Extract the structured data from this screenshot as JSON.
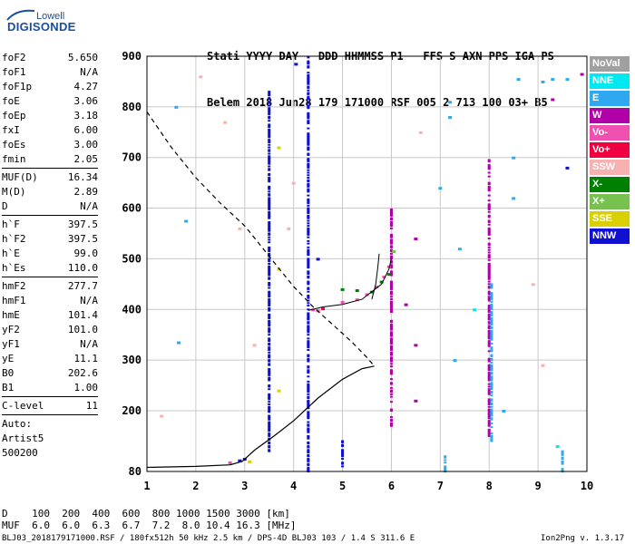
{
  "logo": {
    "top": "Lowell",
    "main": "DIGISONDE"
  },
  "header": {
    "line1": "Stati YYYY DAY   DDD HHMMSS P1   FFS S AXN PPS IGA PS",
    "line2": "Belem 2018 Jun28 179 171000 RSF 005 2 713 100 03+ B5"
  },
  "params": {
    "group1": [
      {
        "k": "foF2",
        "v": "5.650"
      },
      {
        "k": "foF1",
        "v": "N/A"
      },
      {
        "k": "foF1p",
        "v": "4.27"
      },
      {
        "k": "foE",
        "v": "3.06"
      },
      {
        "k": "foEp",
        "v": "3.18"
      },
      {
        "k": "fxI",
        "v": "6.00"
      },
      {
        "k": "foEs",
        "v": "3.00"
      },
      {
        "k": "fmin",
        "v": "2.05"
      }
    ],
    "group2": [
      {
        "k": "MUF(D)",
        "v": "16.34"
      },
      {
        "k": "M(D)",
        "v": "2.89"
      },
      {
        "k": "D",
        "v": "N/A"
      }
    ],
    "group3": [
      {
        "k": "h`F",
        "v": "397.5"
      },
      {
        "k": "h`F2",
        "v": "397.5"
      },
      {
        "k": "h`E",
        "v": "99.0"
      },
      {
        "k": "h`Es",
        "v": "110.0"
      }
    ],
    "group4": [
      {
        "k": "hmF2",
        "v": "277.7"
      },
      {
        "k": "hmF1",
        "v": "N/A"
      },
      {
        "k": "hmE",
        "v": "101.4"
      },
      {
        "k": "yF2",
        "v": "101.0"
      },
      {
        "k": "yF1",
        "v": "N/A"
      },
      {
        "k": "yE",
        "v": "11.1"
      },
      {
        "k": "B0",
        "v": "202.6"
      },
      {
        "k": "B1",
        "v": "1.00"
      }
    ],
    "group5": [
      {
        "k": "C-level",
        "v": "11"
      }
    ],
    "auto_lines": [
      "Auto:",
      "Artist5",
      "500200"
    ]
  },
  "legend": [
    {
      "label": "NoVal",
      "color": "#a0a0a0"
    },
    {
      "label": "NNE",
      "color": "#00e8f0"
    },
    {
      "label": "E",
      "color": "#30a8f0"
    },
    {
      "label": "W",
      "color": "#b000a8"
    },
    {
      "label": "Vo-",
      "color": "#f050b0"
    },
    {
      "label": "Vo+",
      "color": "#f00040"
    },
    {
      "label": "SSW",
      "color": "#f8b0b0"
    },
    {
      "label": "X-",
      "color": "#008000"
    },
    {
      "label": "X+",
      "color": "#78c050"
    },
    {
      "label": "SSE",
      "color": "#d8d000"
    },
    {
      "label": "NNW",
      "color": "#1010d0"
    }
  ],
  "chart_data": {
    "type": "scatter",
    "x_ticks": [
      "1",
      "2",
      "3",
      "4",
      "5",
      "6",
      "7",
      "8",
      "9",
      "10"
    ],
    "y_ticks": [
      "80",
      "200",
      "300",
      "400",
      "500",
      "600",
      "700",
      "800",
      "900"
    ],
    "xlim": [
      1,
      10
    ],
    "ylim": [
      80,
      900
    ],
    "grid": true,
    "trace_solid": [
      [
        1.0,
        88
      ],
      [
        2.0,
        90
      ],
      [
        2.7,
        93
      ],
      [
        2.95,
        100
      ],
      [
        3.2,
        122
      ],
      [
        3.6,
        150
      ],
      [
        4.0,
        180
      ],
      [
        4.5,
        225
      ],
      [
        5.0,
        262
      ],
      [
        5.4,
        283
      ],
      [
        5.65,
        288
      ]
    ],
    "trace_dashed": [
      [
        1.0,
        790
      ],
      [
        1.5,
        720
      ],
      [
        2.0,
        660
      ],
      [
        2.5,
        610
      ],
      [
        3.0,
        565
      ],
      [
        3.5,
        505
      ],
      [
        4.0,
        445
      ],
      [
        4.4,
        405
      ],
      [
        4.8,
        370
      ],
      [
        5.2,
        335
      ],
      [
        5.5,
        305
      ],
      [
        5.65,
        288
      ]
    ],
    "trace_f2": [
      [
        4.3,
        398
      ],
      [
        4.6,
        405
      ],
      [
        5.0,
        410
      ],
      [
        5.4,
        420
      ],
      [
        5.8,
        450
      ],
      [
        5.95,
        480
      ],
      [
        6.0,
        500
      ]
    ],
    "trace_f2_tail": [
      [
        5.6,
        420
      ],
      [
        5.68,
        450
      ],
      [
        5.72,
        482
      ],
      [
        5.75,
        510
      ]
    ],
    "echo_columns": [
      {
        "f": 3.5,
        "h0": 120,
        "h1": 830,
        "color": "#1010d0"
      },
      {
        "f": 4.3,
        "h0": 80,
        "h1": 900,
        "color": "#1010d0"
      },
      {
        "f": 6.0,
        "h0": 170,
        "h1": 600,
        "color": "#b000a8"
      },
      {
        "f": 8.0,
        "h0": 140,
        "h1": 700,
        "color": "#b000a8"
      },
      {
        "f": 8.05,
        "h0": 140,
        "h1": 450,
        "color": "#30a8f0"
      },
      {
        "f": 5.0,
        "h0": 90,
        "h1": 140,
        "color": "#1010d0"
      },
      {
        "f": 7.1,
        "h0": 80,
        "h1": 110,
        "color": "#30a8f0"
      },
      {
        "f": 9.5,
        "h0": 80,
        "h1": 120,
        "color": "#30a8f0"
      }
    ],
    "echo_points": [
      {
        "f": 4.4,
        "h": 400,
        "color": "#f050b0"
      },
      {
        "f": 4.5,
        "h": 398,
        "color": "#f050b0"
      },
      {
        "f": 4.6,
        "h": 402,
        "color": "#f00040"
      },
      {
        "f": 5.0,
        "h": 415,
        "color": "#f050b0"
      },
      {
        "f": 5.3,
        "h": 420,
        "color": "#f050b0"
      },
      {
        "f": 5.5,
        "h": 430,
        "color": "#f050b0"
      },
      {
        "f": 5.7,
        "h": 445,
        "color": "#f050b0"
      },
      {
        "f": 5.85,
        "h": 465,
        "color": "#f050b0"
      },
      {
        "f": 5.95,
        "h": 485,
        "color": "#f050b0"
      },
      {
        "f": 5.0,
        "h": 440,
        "color": "#008000"
      },
      {
        "f": 5.3,
        "h": 438,
        "color": "#008000"
      },
      {
        "f": 5.6,
        "h": 435,
        "color": "#008000"
      },
      {
        "f": 5.8,
        "h": 455,
        "color": "#008000"
      },
      {
        "f": 5.95,
        "h": 470,
        "color": "#008000"
      },
      {
        "f": 6.05,
        "h": 515,
        "color": "#78c050"
      },
      {
        "f": 2.9,
        "h": 102,
        "color": "#1010d0"
      },
      {
        "f": 3.0,
        "h": 105,
        "color": "#1010d0"
      },
      {
        "f": 2.7,
        "h": 98,
        "color": "#f050b0"
      },
      {
        "f": 3.1,
        "h": 100,
        "color": "#d8d000"
      },
      {
        "f": 3.7,
        "h": 720,
        "color": "#d8d000"
      },
      {
        "f": 3.7,
        "h": 480,
        "color": "#d8d000"
      },
      {
        "f": 3.7,
        "h": 240,
        "color": "#d8d000"
      },
      {
        "f": 3.2,
        "h": 330,
        "color": "#f8b0b0"
      },
      {
        "f": 2.6,
        "h": 770,
        "color": "#f8b0b0"
      },
      {
        "f": 2.9,
        "h": 560,
        "color": "#f8b0b0"
      },
      {
        "f": 4.0,
        "h": 650,
        "color": "#f8b0b0"
      },
      {
        "f": 3.9,
        "h": 560,
        "color": "#f8b0b0"
      },
      {
        "f": 1.3,
        "h": 190,
        "color": "#f8b0b0"
      },
      {
        "f": 2.1,
        "h": 860,
        "color": "#f8b0b0"
      },
      {
        "f": 6.6,
        "h": 750,
        "color": "#f8b0b0"
      },
      {
        "f": 8.9,
        "h": 450,
        "color": "#f8b0b0"
      },
      {
        "f": 9.1,
        "h": 290,
        "color": "#f8b0b0"
      },
      {
        "f": 6.5,
        "h": 220,
        "color": "#b000a8"
      },
      {
        "f": 6.5,
        "h": 330,
        "color": "#b000a8"
      },
      {
        "f": 6.3,
        "h": 410,
        "color": "#b000a8"
      },
      {
        "f": 6.5,
        "h": 540,
        "color": "#b000a8"
      },
      {
        "f": 9.9,
        "h": 865,
        "color": "#b000a8"
      },
      {
        "f": 9.3,
        "h": 815,
        "color": "#b000a8"
      },
      {
        "f": 1.6,
        "h": 800,
        "color": "#30a8f0"
      },
      {
        "f": 1.8,
        "h": 575,
        "color": "#30a8f0"
      },
      {
        "f": 1.65,
        "h": 335,
        "color": "#30a8f0"
      },
      {
        "f": 7.2,
        "h": 810,
        "color": "#30a8f0"
      },
      {
        "f": 7.2,
        "h": 780,
        "color": "#30a8f0"
      },
      {
        "f": 7.0,
        "h": 640,
        "color": "#30a8f0"
      },
      {
        "f": 7.4,
        "h": 520,
        "color": "#30a8f0"
      },
      {
        "f": 8.5,
        "h": 700,
        "color": "#30a8f0"
      },
      {
        "f": 8.5,
        "h": 620,
        "color": "#30a8f0"
      },
      {
        "f": 9.1,
        "h": 850,
        "color": "#30a8f0"
      },
      {
        "f": 9.3,
        "h": 855,
        "color": "#30a8f0"
      },
      {
        "f": 9.6,
        "h": 855,
        "color": "#30a8f0"
      },
      {
        "f": 8.6,
        "h": 855,
        "color": "#30a8f0"
      },
      {
        "f": 8.3,
        "h": 200,
        "color": "#30a8f0"
      },
      {
        "f": 7.3,
        "h": 300,
        "color": "#30a8f0"
      },
      {
        "f": 9.6,
        "h": 680,
        "color": "#1010d0"
      },
      {
        "f": 4.05,
        "h": 885,
        "color": "#1010d0"
      },
      {
        "f": 4.5,
        "h": 500,
        "color": "#1010d0"
      },
      {
        "f": 9.4,
        "h": 130,
        "color": "#00e8f0"
      },
      {
        "f": 7.7,
        "h": 400,
        "color": "#00e8f0"
      }
    ]
  },
  "footer": {
    "row1": "D    100  200  400  600  800 1000 1500 3000 [km]",
    "row2": "MUF  6.0  6.0  6.3  6.7  7.2  8.0 10.4 16.3 [MHz]",
    "row3": "BLJ03_2018179171000.RSF / 180fx512h 50 kHz 2.5 km / DPS-4D BLJ03 103 / 1.4 S 311.6 E",
    "version": "Ion2Png v. 1.3.17"
  }
}
